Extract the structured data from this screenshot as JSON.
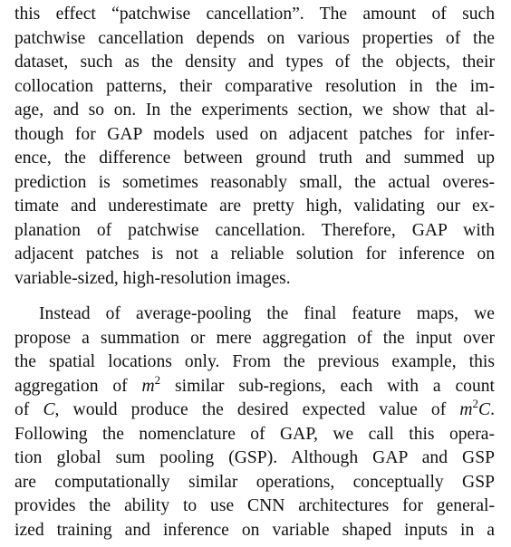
{
  "paragraph_1": {
    "lines": [
      "this effect “patchwise cancellation”.  The amount of such",
      "patchwise cancellation depends on various properties of the",
      "dataset, such as the density and types of the objects, their",
      "collocation patterns, their comparative resolution in the im-",
      "age, and so on. In the experiments section, we show that al-",
      "though for GAP models used on adjacent patches for infer-",
      "ence, the difference between ground truth and summed up",
      "prediction is sometimes reasonably small, the actual overes-",
      "timate and underestimate are pretty high, validating our ex-",
      "planation of patchwise cancellation.  Therefore, GAP with",
      "adjacent patches is not a reliable solution for inference on",
      "variable-sized, high-resolution images."
    ]
  },
  "paragraph_2": {
    "line_1": "Instead of average-pooling the final feature maps, we",
    "line_2": "propose a summation or mere aggregation of the input over",
    "line_3": "the spatial locations only.  From the previous example, this",
    "line_4_a": "aggregation of ",
    "line_4_m": "m",
    "line_4_exp": "2",
    "line_4_b": " similar sub-regions, each with a count",
    "line_5_a": "of ",
    "line_5_c": "C",
    "line_5_b": ", would produce the desired expected value of ",
    "line_5_m": "m",
    "line_5_exp": "2",
    "line_5_c2": "C",
    "line_5_end": ".",
    "line_6": "Following the nomenclature of GAP, we call this opera-",
    "line_7": "tion global sum pooling (GSP). Although GAP and GSP",
    "line_8": "are computationally similar operations, conceptually GSP",
    "line_9": "provides the ability to use CNN architectures for general-",
    "line_10": "ized training and inference on variable shaped inputs in a"
  }
}
